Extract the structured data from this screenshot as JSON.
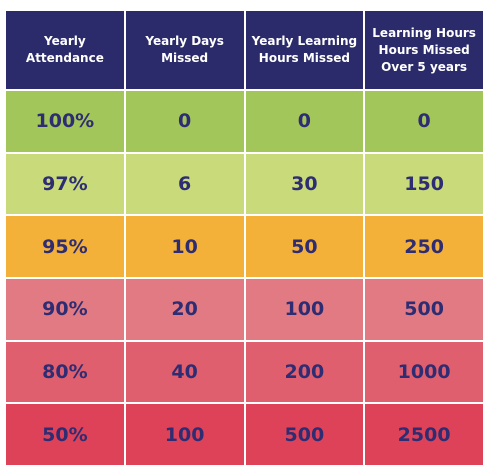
{
  "headers": [
    {
      "lines": [
        "Yearly",
        "Attendance"
      ]
    },
    {
      "lines": [
        "Yearly Days",
        "Missed"
      ]
    },
    {
      "lines": [
        "Yearly Learning",
        "Hours Missed"
      ]
    },
    {
      "lines": [
        "Learning Hours",
        "Hours Missed",
        "Over 5 years"
      ]
    }
  ],
  "rows": [
    {
      "color": "#a2c65a",
      "cells": [
        "100%",
        "0",
        "0",
        "0"
      ]
    },
    {
      "color": "#c8da79",
      "cells": [
        "97%",
        "6",
        "30",
        "150"
      ]
    },
    {
      "color": "#f4b13a",
      "cells": [
        "95%",
        "10",
        "50",
        "250"
      ]
    },
    {
      "color": "#e17a82",
      "cells": [
        "90%",
        "20",
        "100",
        "500"
      ]
    },
    {
      "color": "#df5f6e",
      "cells": [
        "80%",
        "40",
        "200",
        "1000"
      ]
    },
    {
      "color": "#dd4258",
      "cells": [
        "50%",
        "100",
        "500",
        "2500"
      ]
    }
  ]
}
